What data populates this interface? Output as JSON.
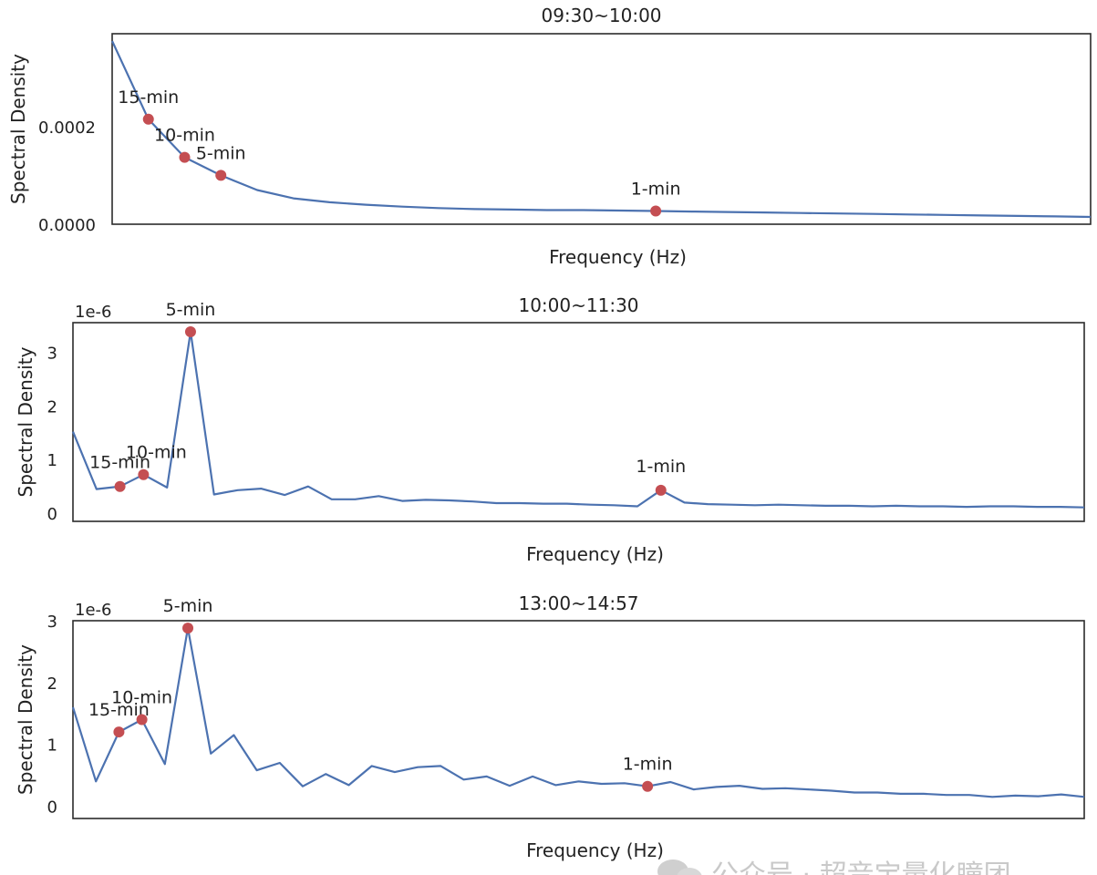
{
  "chart_data": [
    {
      "type": "line",
      "title": "09:30~10:00",
      "xlabel": "Frequency (Hz)",
      "ylabel": "Spectral Density",
      "ylim": [
        0,
        0.00039
      ],
      "y_ticks": [
        0.0,
        0.0002
      ],
      "y_tick_labels": [
        "0.0000",
        "0.0002"
      ],
      "y_offset_label": "",
      "series": [
        {
          "color": "#4C72B0",
          "x": [
            0,
            1,
            2,
            3,
            4,
            5,
            6,
            7,
            8,
            9,
            10,
            11,
            12,
            13,
            14,
            15,
            16,
            17,
            18,
            19,
            20,
            21,
            22,
            23,
            24,
            25,
            26,
            27
          ],
          "values": [
            0.000375,
            0.000215,
            0.000137,
            0.0001,
            7e-05,
            5.3e-05,
            4.5e-05,
            4e-05,
            3.6e-05,
            3.3e-05,
            3.1e-05,
            3e-05,
            2.9e-05,
            2.9e-05,
            2.8e-05,
            2.7e-05,
            2.6e-05,
            2.5e-05,
            2.4e-05,
            2.3e-05,
            2.2e-05,
            2.1e-05,
            2e-05,
            1.9e-05,
            1.8e-05,
            1.7e-05,
            1.6e-05,
            1.5e-05
          ]
        }
      ],
      "markers": [
        {
          "label": "15-min",
          "x": 1,
          "y": 0.000215
        },
        {
          "label": "10-min",
          "x": 2,
          "y": 0.000137
        },
        {
          "label": "5-min",
          "x": 3,
          "y": 0.0001
        },
        {
          "label": "1-min",
          "x": 15,
          "y": 2.7e-05
        }
      ],
      "marker_color": "#C44E52",
      "grid": false
    },
    {
      "type": "line",
      "title": "10:00~11:30",
      "xlabel": "Frequency (Hz)",
      "ylabel": "Spectral Density",
      "ylim": [
        -0.15,
        3.55
      ],
      "y_ticks": [
        0,
        1,
        2,
        3
      ],
      "y_tick_labels": [
        "0",
        "1",
        "2",
        "3"
      ],
      "y_offset_label": "1e-6",
      "series": [
        {
          "color": "#4C72B0",
          "x": [
            0,
            1,
            2,
            3,
            4,
            5,
            6,
            7,
            8,
            9,
            10,
            11,
            12,
            13,
            14,
            15,
            16,
            17,
            18,
            19,
            20,
            21,
            22,
            23,
            24,
            25,
            26,
            27,
            28,
            29,
            30,
            31,
            32,
            33,
            34,
            35,
            36,
            37,
            38,
            39,
            40,
            41,
            42,
            43
          ],
          "values": [
            1.52,
            0.45,
            0.5,
            0.72,
            0.48,
            3.38,
            0.35,
            0.43,
            0.46,
            0.34,
            0.5,
            0.26,
            0.26,
            0.32,
            0.23,
            0.25,
            0.24,
            0.22,
            0.19,
            0.19,
            0.18,
            0.18,
            0.16,
            0.15,
            0.13,
            0.43,
            0.2,
            0.17,
            0.16,
            0.15,
            0.16,
            0.15,
            0.14,
            0.14,
            0.13,
            0.14,
            0.13,
            0.13,
            0.12,
            0.13,
            0.13,
            0.12,
            0.12,
            0.11
          ]
        }
      ],
      "markers": [
        {
          "label": "15-min",
          "x": 2,
          "y": 0.5
        },
        {
          "label": "10-min",
          "x": 3,
          "y": 0.72
        },
        {
          "label": "5-min",
          "x": 5,
          "y": 3.38
        },
        {
          "label": "1-min",
          "x": 25,
          "y": 0.43
        }
      ],
      "marker_color": "#C44E52",
      "grid": false
    },
    {
      "type": "line",
      "title": "13:00~14:57",
      "xlabel": "Frequency (Hz)",
      "ylabel": "Spectral Density",
      "ylim": [
        -0.2,
        3.0
      ],
      "y_ticks": [
        0,
        1,
        2,
        3
      ],
      "y_tick_labels": [
        "0",
        "1",
        "2",
        "3"
      ],
      "y_offset_label": "1e-6",
      "series": [
        {
          "color": "#4C72B0",
          "x": [
            0,
            1,
            2,
            3,
            4,
            5,
            6,
            7,
            8,
            9,
            10,
            11,
            12,
            13,
            14,
            15,
            16,
            17,
            18,
            19,
            20,
            21,
            22,
            23,
            24,
            25,
            26,
            27,
            28,
            29,
            30,
            31,
            32,
            33,
            34,
            35,
            36,
            37,
            38,
            39,
            40,
            41,
            42,
            43,
            44
          ],
          "values": [
            1.6,
            0.4,
            1.2,
            1.4,
            0.68,
            2.88,
            0.85,
            1.15,
            0.58,
            0.7,
            0.32,
            0.52,
            0.34,
            0.65,
            0.55,
            0.63,
            0.65,
            0.43,
            0.48,
            0.33,
            0.48,
            0.34,
            0.4,
            0.36,
            0.37,
            0.32,
            0.39,
            0.27,
            0.31,
            0.33,
            0.28,
            0.29,
            0.27,
            0.25,
            0.22,
            0.22,
            0.2,
            0.2,
            0.18,
            0.18,
            0.15,
            0.17,
            0.16,
            0.19,
            0.15
          ]
        }
      ],
      "markers": [
        {
          "label": "15-min",
          "x": 2,
          "y": 1.2
        },
        {
          "label": "10-min",
          "x": 3,
          "y": 1.4
        },
        {
          "label": "5-min",
          "x": 5,
          "y": 2.88
        },
        {
          "label": "1-min",
          "x": 25,
          "y": 0.32
        }
      ],
      "marker_color": "#C44E52",
      "grid": false
    }
  ],
  "watermark": {
    "text": "公众号 · 超音宝量化瞳团",
    "icon": "wechat-icon",
    "color": "#c9c9c9"
  }
}
